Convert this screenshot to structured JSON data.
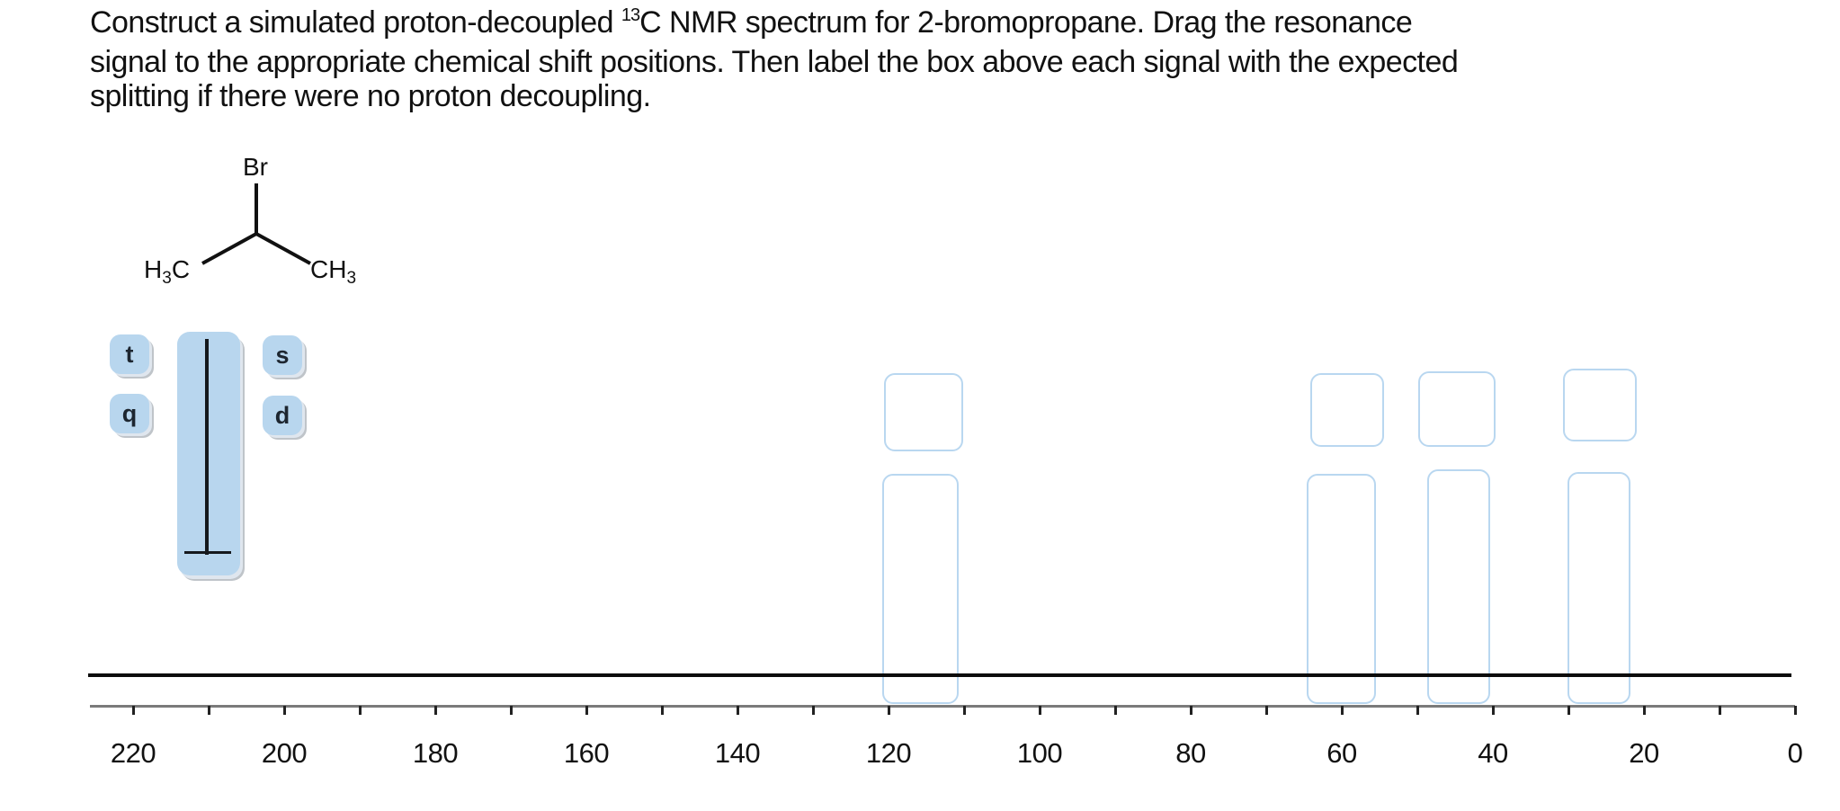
{
  "prompt": {
    "before_sup": "Construct a simulated proton-decoupled ",
    "sup": "13",
    "after_sup_line1": "C NMR spectrum for 2-bromopropane. Drag the resonance",
    "line2": "signal to the appropriate chemical shift positions. Then label the box above each signal with the expected",
    "line3": "splitting if there were no proton decoupling."
  },
  "molecule": {
    "name": "2-bromopropane",
    "top_atom": "Br",
    "left_group": {
      "main": "H",
      "sub": "3",
      "tail": "C"
    },
    "right_group": {
      "main": "CH",
      "sub": "3"
    }
  },
  "palette": {
    "chips": [
      {
        "id": "t",
        "label": "t"
      },
      {
        "id": "q",
        "label": "q"
      },
      {
        "id": "s",
        "label": "s"
      },
      {
        "id": "d",
        "label": "d"
      }
    ],
    "signal_tile": {
      "icon": "nmr-signal-peak-icon"
    }
  },
  "targets": [
    {
      "approx_ppm": 118,
      "label_value": "",
      "signal_value": ""
    },
    {
      "approx_ppm": 61,
      "label_value": "",
      "signal_value": ""
    },
    {
      "approx_ppm": 45,
      "label_value": "",
      "signal_value": ""
    },
    {
      "approx_ppm": 27,
      "label_value": "",
      "signal_value": ""
    }
  ],
  "axis": {
    "unit": "ppm",
    "min": 0,
    "max": 220,
    "major_ticks": [
      "220",
      "200",
      "180",
      "160",
      "140",
      "120",
      "100",
      "80",
      "60",
      "40",
      "20",
      "0"
    ],
    "minor_tick_step": 10
  },
  "colors": {
    "chip_fill": "#b8d6ee",
    "target_border": "#b9d7f0",
    "baseline": "#0c0c0c",
    "axis": "#7b7b7b"
  }
}
